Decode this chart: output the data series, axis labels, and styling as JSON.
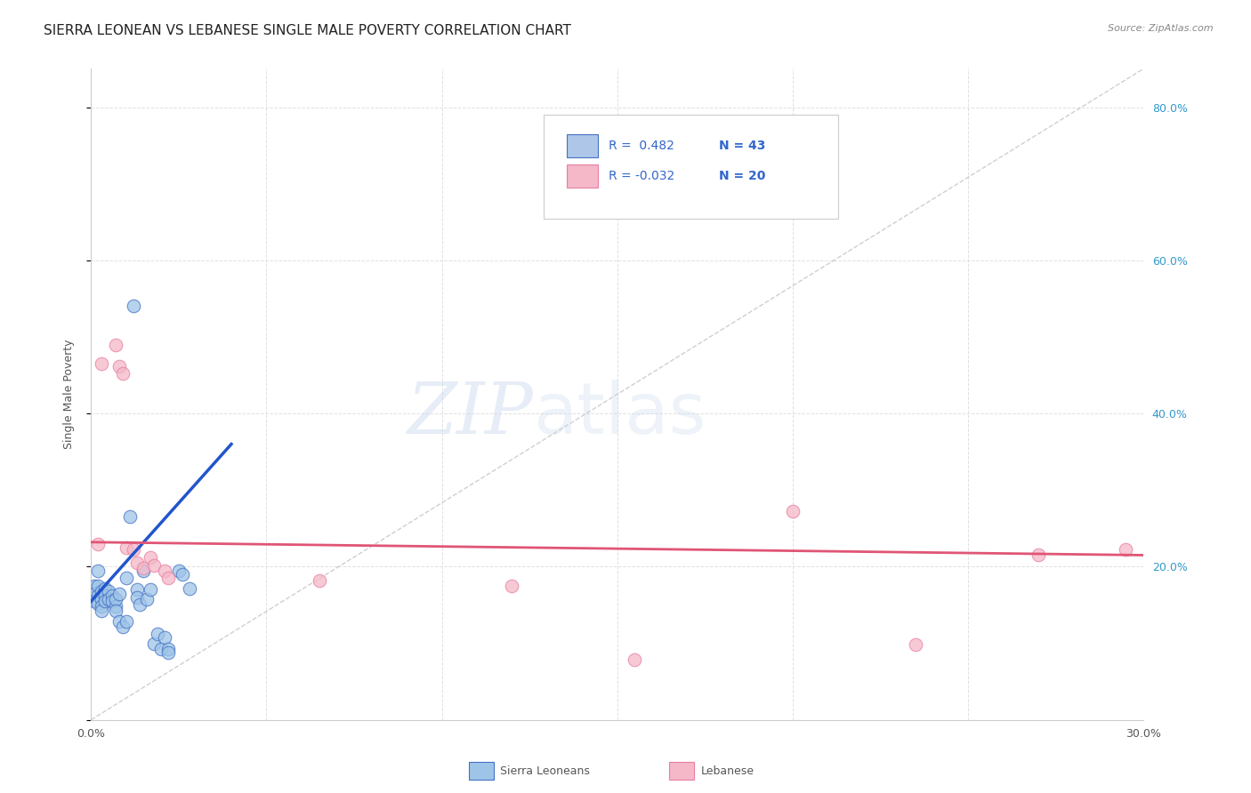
{
  "title": "SIERRA LEONEAN VS LEBANESE SINGLE MALE POVERTY CORRELATION CHART",
  "source": "Source: ZipAtlas.com",
  "ylabel": "Single Male Poverty",
  "xlim": [
    0.0,
    0.3
  ],
  "ylim": [
    0.0,
    0.85
  ],
  "xticks": [
    0.0,
    0.05,
    0.1,
    0.15,
    0.2,
    0.25,
    0.3
  ],
  "yticks": [
    0.0,
    0.2,
    0.4,
    0.6,
    0.8
  ],
  "xtick_labels": [
    "0.0%",
    "",
    "",
    "",
    "",
    "",
    "30.0%"
  ],
  "right_ytick_labels": [
    "20.0%",
    "40.0%",
    "60.0%",
    "80.0%"
  ],
  "legend_entries": [
    {
      "label_r": "R =  0.482",
      "label_n": "N = 43",
      "color": "#aec6e8",
      "edge_color": "#4472c4"
    },
    {
      "label_r": "R = -0.032",
      "label_n": "N = 20",
      "color": "#f4b8c8",
      "edge_color": "#e87fa0"
    }
  ],
  "sierra_leone_points": [
    [
      0.001,
      0.175
    ],
    [
      0.001,
      0.165
    ],
    [
      0.001,
      0.155
    ],
    [
      0.002,
      0.195
    ],
    [
      0.002,
      0.175
    ],
    [
      0.002,
      0.162
    ],
    [
      0.002,
      0.152
    ],
    [
      0.003,
      0.168
    ],
    [
      0.003,
      0.158
    ],
    [
      0.003,
      0.148
    ],
    [
      0.003,
      0.142
    ],
    [
      0.004,
      0.172
    ],
    [
      0.004,
      0.162
    ],
    [
      0.004,
      0.155
    ],
    [
      0.005,
      0.168
    ],
    [
      0.005,
      0.158
    ],
    [
      0.006,
      0.162
    ],
    [
      0.006,
      0.155
    ],
    [
      0.007,
      0.148
    ],
    [
      0.007,
      0.158
    ],
    [
      0.007,
      0.142
    ],
    [
      0.008,
      0.165
    ],
    [
      0.008,
      0.128
    ],
    [
      0.009,
      0.122
    ],
    [
      0.01,
      0.128
    ],
    [
      0.01,
      0.185
    ],
    [
      0.011,
      0.265
    ],
    [
      0.012,
      0.54
    ],
    [
      0.013,
      0.17
    ],
    [
      0.013,
      0.16
    ],
    [
      0.014,
      0.15
    ],
    [
      0.015,
      0.195
    ],
    [
      0.016,
      0.158
    ],
    [
      0.017,
      0.17
    ],
    [
      0.018,
      0.1
    ],
    [
      0.019,
      0.112
    ],
    [
      0.02,
      0.092
    ],
    [
      0.021,
      0.108
    ],
    [
      0.022,
      0.092
    ],
    [
      0.022,
      0.088
    ],
    [
      0.025,
      0.195
    ],
    [
      0.026,
      0.19
    ],
    [
      0.028,
      0.172
    ]
  ],
  "lebanese_points": [
    [
      0.002,
      0.23
    ],
    [
      0.003,
      0.465
    ],
    [
      0.007,
      0.49
    ],
    [
      0.008,
      0.462
    ],
    [
      0.009,
      0.452
    ],
    [
      0.01,
      0.225
    ],
    [
      0.012,
      0.222
    ],
    [
      0.013,
      0.205
    ],
    [
      0.015,
      0.198
    ],
    [
      0.017,
      0.212
    ],
    [
      0.018,
      0.202
    ],
    [
      0.021,
      0.195
    ],
    [
      0.022,
      0.185
    ],
    [
      0.065,
      0.182
    ],
    [
      0.12,
      0.175
    ],
    [
      0.155,
      0.078
    ],
    [
      0.2,
      0.272
    ],
    [
      0.235,
      0.098
    ],
    [
      0.27,
      0.215
    ],
    [
      0.295,
      0.222
    ]
  ],
  "sierra_line_x": [
    0.0,
    0.04
  ],
  "sierra_line_y": [
    0.155,
    0.36
  ],
  "lebanese_line_x": [
    0.0,
    0.3
  ],
  "lebanese_line_y": [
    0.232,
    0.215
  ],
  "diagonal_line_x": [
    0.0,
    0.3
  ],
  "diagonal_line_y": [
    0.0,
    0.85
  ],
  "scatter_size": 110,
  "sierra_color": "#9ec4e8",
  "sierra_edge_color": "#4472c4",
  "lebanese_color": "#f4b8c8",
  "lebanese_edge_color": "#e87fa0",
  "sierra_line_color": "#2255cc",
  "lebanese_line_color": "#e05575",
  "diagonal_color": "#bbbbbb",
  "grid_color": "#dddddd",
  "background_color": "#ffffff",
  "title_fontsize": 11,
  "axis_label_fontsize": 9,
  "tick_fontsize": 9,
  "right_tick_color": "#3399cc"
}
